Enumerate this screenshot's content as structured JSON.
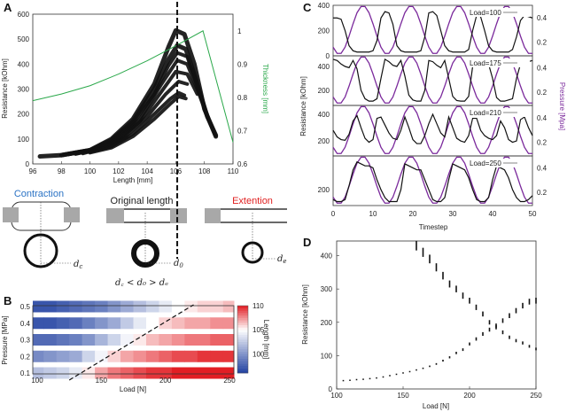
{
  "panels": {
    "a": "A",
    "b": "B",
    "c": "C",
    "d": "D"
  },
  "colors": {
    "thickness": "#2aa84a",
    "pressure": "#7b2a9c",
    "contraction": "#2a72c4",
    "extension": "#e02020",
    "resistance": "#111111",
    "gray_block": "#a8a8a8"
  },
  "diagram": {
    "contraction_label": "Contraction",
    "original_label": "Original length",
    "extension_label": "Extention",
    "dc": "d",
    "dc_sub": "c",
    "d0": "d",
    "d0_sub": "0",
    "de": "d",
    "de_sub": "e",
    "relation": "d꜀ < d₀ > dₑ"
  },
  "chart_data": [
    {
      "panel": "A",
      "type": "scatter",
      "xlabel": "Length [mm]",
      "ylabel": "Resistance [kOhm]",
      "y2label": "Thickness [mm]",
      "xlim": [
        96,
        110
      ],
      "ylim": [
        0,
        600
      ],
      "y2lim": [
        0.6,
        1.05
      ],
      "xticks": [
        96,
        98,
        100,
        102,
        104,
        106,
        108,
        110
      ],
      "yticks": [
        0,
        100,
        200,
        300,
        400,
        500,
        600
      ],
      "y2ticks": [
        0.6,
        0.7,
        0.8,
        0.9,
        1
      ],
      "vline_x": 106.1,
      "series": [
        {
          "points": [
            [
              96.5,
              30
            ],
            [
              98,
              35
            ],
            [
              100,
              55
            ],
            [
              101.5,
              100
            ],
            [
              103,
              180
            ],
            [
              104.5,
              320
            ],
            [
              105.5,
              470
            ],
            [
              106,
              535
            ],
            [
              106.6,
              520
            ],
            [
              107.3,
              400
            ],
            [
              108,
              220
            ],
            [
              108.8,
              110
            ]
          ]
        },
        {
          "points": [
            [
              98,
              35
            ],
            [
              100,
              55
            ],
            [
              101.5,
              95
            ],
            [
              103,
              170
            ],
            [
              104.5,
              300
            ],
            [
              105.5,
              420
            ],
            [
              106.1,
              475
            ],
            [
              106.7,
              460
            ],
            [
              107.4,
              340
            ],
            [
              108.2,
              190
            ],
            [
              108.8,
              115
            ]
          ]
        },
        {
          "points": [
            [
              98.5,
              38
            ],
            [
              100,
              55
            ],
            [
              101.5,
              90
            ],
            [
              103,
              160
            ],
            [
              104.5,
              280
            ],
            [
              105.5,
              395
            ],
            [
              106.1,
              445
            ],
            [
              106.8,
              430
            ],
            [
              107.5,
              310
            ],
            [
              108.3,
              180
            ]
          ]
        },
        {
          "points": [
            [
              99,
              40
            ],
            [
              100.5,
              60
            ],
            [
              102,
              100
            ],
            [
              103.5,
              180
            ],
            [
              105,
              320
            ],
            [
              106.1,
              415
            ],
            [
              106.8,
              400
            ],
            [
              107.5,
              300
            ],
            [
              108.2,
              190
            ]
          ]
        },
        {
          "points": [
            [
              99,
              40
            ],
            [
              100.5,
              58
            ],
            [
              102,
              95
            ],
            [
              103.5,
              170
            ],
            [
              105,
              290
            ],
            [
              106,
              370
            ],
            [
              106.8,
              360
            ],
            [
              107.5,
              280
            ]
          ]
        },
        {
          "points": [
            [
              99.5,
              42
            ],
            [
              101,
              65
            ],
            [
              102.5,
              110
            ],
            [
              104,
              190
            ],
            [
              105.3,
              280
            ],
            [
              106.2,
              330
            ],
            [
              106.8,
              320
            ]
          ]
        },
        {
          "points": [
            [
              100,
              48
            ],
            [
              101.5,
              70
            ],
            [
              103,
              120
            ],
            [
              104.5,
              200
            ],
            [
              105.6,
              260
            ],
            [
              106.2,
              285
            ],
            [
              106.6,
              275
            ]
          ]
        },
        {
          "points": [
            [
              100,
              45
            ],
            [
              101.5,
              65
            ],
            [
              103,
              110
            ],
            [
              104.5,
              180
            ],
            [
              105.6,
              240
            ],
            [
              106.2,
              270
            ],
            [
              106.7,
              262
            ]
          ]
        }
      ],
      "thickness_line": [
        [
          96,
          0.79
        ],
        [
          98,
          0.81
        ],
        [
          100,
          0.835
        ],
        [
          102,
          0.87
        ],
        [
          104,
          0.91
        ],
        [
          106,
          0.955
        ],
        [
          107.9,
          1.0
        ],
        [
          110,
          0.665
        ]
      ]
    },
    {
      "panel": "B",
      "type": "heatmap",
      "xlabel": "Load [N]",
      "ylabel": "Pressure [MPa]",
      "colorbar_label": "Length [mm]",
      "xticks": [
        100,
        150,
        200,
        250
      ],
      "yticks": [
        0.1,
        0.2,
        0.3,
        0.4,
        0.5
      ],
      "colorbar_ticks": [
        100,
        105,
        110
      ],
      "color_range": [
        96,
        110
      ],
      "loads": [
        100,
        110,
        120,
        130,
        140,
        150,
        160,
        170,
        180,
        190,
        200,
        210,
        220,
        230,
        240,
        250
      ],
      "rows": [
        {
          "pressure": 0.5,
          "values": [
            97,
            97,
            97.5,
            98,
            98.5,
            99,
            100,
            101,
            102,
            103,
            104,
            105,
            105.5,
            106,
            106,
            106.5
          ]
        },
        {
          "pressure": 0.4,
          "values": [
            97,
            97,
            97.5,
            98,
            99,
            100,
            101,
            102.5,
            104,
            105,
            106,
            106.5,
            107,
            107,
            107.5,
            107.5
          ]
        },
        {
          "pressure": 0.3,
          "values": [
            98,
            98,
            98.5,
            99,
            100,
            101.5,
            103,
            104.5,
            105.5,
            106.5,
            107,
            107.5,
            108,
            108,
            108.5,
            108.5
          ]
        },
        {
          "pressure": 0.2,
          "values": [
            99.5,
            100,
            100.5,
            101,
            103,
            104.5,
            106,
            107,
            107.5,
            108,
            108.5,
            109,
            109,
            109.5,
            109.5,
            109.5
          ]
        },
        {
          "pressure": 0.1,
          "values": [
            102,
            102.5,
            103,
            104,
            105.5,
            107,
            108,
            108.5,
            109,
            109.5,
            109.5,
            110,
            110,
            110,
            110,
            110
          ]
        }
      ],
      "dashed_line": [
        [
          125,
          0.1
        ],
        [
          222,
          0.5
        ]
      ]
    },
    {
      "panel": "C",
      "type": "line",
      "xlabel": "Timestep",
      "ylabel": "Resistance [kOhm]",
      "y2label": "Pressure [Mpa]",
      "xlim": [
        0,
        50
      ],
      "xticks": [
        0,
        10,
        20,
        30,
        40,
        50
      ],
      "y2lim": [
        0.09,
        0.5
      ],
      "y2ticks": [
        0.2,
        0.4
      ],
      "pressure": [
        0.16,
        0.11,
        0.11,
        0.16,
        0.25,
        0.35,
        0.44,
        0.49,
        0.49,
        0.44,
        0.35,
        0.25,
        0.16,
        0.11,
        0.11,
        0.16,
        0.25,
        0.35,
        0.44,
        0.49,
        0.49,
        0.44,
        0.35,
        0.25,
        0.16,
        0.11,
        0.11,
        0.16,
        0.25,
        0.35,
        0.44,
        0.49,
        0.49,
        0.44,
        0.35,
        0.25,
        0.16,
        0.11,
        0.11,
        0.16,
        0.25,
        0.35,
        0.44,
        0.49,
        0.49,
        0.44,
        0.35,
        0.25,
        0.16,
        0.11,
        0.11
      ],
      "subplots": [
        {
          "legend": "Load=100",
          "ylim": [
            0,
            400
          ],
          "yticks": [
            0,
            200,
            400
          ],
          "resistance": [
            300,
            300,
            290,
            200,
            80,
            40,
            30,
            30,
            30,
            30,
            40,
            120,
            300,
            350,
            340,
            250,
            80,
            40,
            30,
            30,
            30,
            30,
            40,
            150,
            340,
            350,
            320,
            200,
            80,
            40,
            30,
            30,
            30,
            30,
            50,
            200,
            320,
            310,
            200,
            80,
            40,
            30,
            30,
            30,
            30,
            50,
            150,
            280,
            320,
            310,
            300
          ]
        },
        {
          "legend": "Load=175",
          "ylim": [
            74,
            489
          ],
          "yticks": [
            200,
            400
          ],
          "resistance": [
            460,
            450,
            420,
            400,
            390,
            450,
            380,
            200,
            130,
            110,
            110,
            130,
            300,
            460,
            440,
            410,
            400,
            450,
            320,
            160,
            120,
            110,
            110,
            200,
            450,
            440,
            410,
            390,
            450,
            300,
            150,
            115,
            110,
            110,
            150,
            400,
            420,
            420,
            400,
            420,
            300,
            140,
            110,
            110,
            120,
            130,
            300,
            420,
            430,
            440,
            450
          ]
        },
        {
          "legend": "Load=210",
          "ylim": [
            87,
            467
          ],
          "yticks": [
            200,
            400
          ],
          "resistance": [
            280,
            230,
            210,
            205,
            250,
            350,
            390,
            300,
            220,
            190,
            210,
            370,
            380,
            320,
            260,
            220,
            210,
            280,
            380,
            300,
            210,
            180,
            180,
            240,
            330,
            400,
            330,
            260,
            230,
            380,
            300,
            220,
            200,
            190,
            240,
            370,
            370,
            280,
            240,
            220,
            210,
            240,
            350,
            300,
            210,
            190,
            200,
            360,
            380,
            300,
            240
          ]
        },
        {
          "legend": "Load=250",
          "ylim": [
            120,
            370
          ],
          "yticks": [
            200
          ],
          "resistance": [
            150,
            140,
            140,
            150,
            220,
            300,
            340,
            330,
            320,
            320,
            310,
            250,
            200,
            160,
            140,
            140,
            140,
            200,
            330,
            320,
            310,
            300,
            300,
            250,
            200,
            150,
            140,
            140,
            160,
            250,
            330,
            320,
            310,
            300,
            260,
            200,
            150,
            140,
            140,
            160,
            250,
            320,
            310,
            300,
            260,
            200,
            160,
            140,
            140,
            150,
            170
          ]
        }
      ]
    },
    {
      "panel": "D",
      "type": "scatter",
      "xlabel": "Load [N]",
      "ylabel": "Resistance [kOhm]",
      "xlim": [
        100,
        250
      ],
      "ylim": [
        0,
        444
      ],
      "xticks": [
        100,
        150,
        200,
        250
      ],
      "yticks": [
        0,
        100,
        200,
        300,
        400
      ],
      "series": [
        {
          "x": [
            105,
            110,
            115,
            120,
            125,
            130,
            135,
            140,
            145,
            150,
            155,
            160,
            165,
            170,
            175,
            180,
            185,
            190,
            195,
            200,
            205,
            210,
            215,
            220,
            225,
            230,
            235,
            240,
            245,
            250
          ],
          "y": [
            25,
            26,
            28,
            29,
            31,
            33,
            36,
            40,
            44,
            48,
            52,
            57,
            62,
            68,
            75,
            85,
            95,
            108,
            118,
            135,
            150,
            165,
            178,
            190,
            205,
            220,
            235,
            250,
            262,
            265
          ]
        },
        {
          "x": [
            160,
            165,
            170,
            175,
            180,
            185,
            190,
            195,
            200,
            205,
            210,
            215,
            220,
            225,
            230,
            235,
            240,
            245,
            250
          ],
          "y": [
            430,
            410,
            390,
            365,
            340,
            315,
            300,
            280,
            265,
            245,
            225,
            200,
            185,
            170,
            155,
            145,
            138,
            128,
            120
          ]
        }
      ]
    }
  ]
}
